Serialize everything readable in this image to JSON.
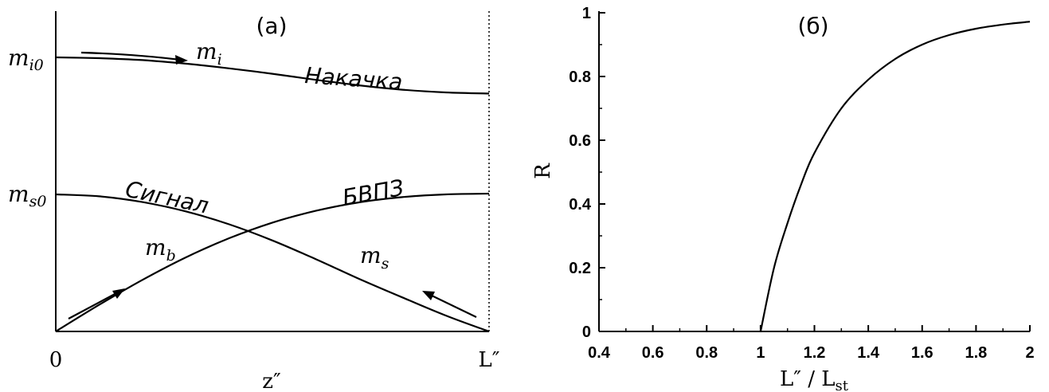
{
  "chart_data": [
    {
      "panel": "a",
      "type": "line",
      "title": "(а)",
      "xlabel": "z″",
      "ylabel": "",
      "x_ticks": [
        "0",
        "L″"
      ],
      "y_ticks": [
        {
          "main": "m",
          "sub": "i0",
          "value": 1.0
        },
        {
          "main": "m",
          "sub": "s0",
          "value": 0.5
        }
      ],
      "xlim": [
        0,
        1
      ],
      "ylim": [
        0,
        1.15
      ],
      "dotted_line_at_x": 1,
      "series": [
        {
          "name": "Накачка",
          "symbol": "m",
          "symbol_sub": "i",
          "direction": "forward",
          "x": [
            0,
            0.1,
            0.2,
            0.3,
            0.4,
            0.5,
            0.6,
            0.7,
            0.8,
            0.9,
            1.0
          ],
          "y": [
            1.0,
            0.997,
            0.99,
            0.977,
            0.96,
            0.94,
            0.918,
            0.898,
            0.882,
            0.872,
            0.868
          ]
        },
        {
          "name": "Сигнал",
          "symbol": "m",
          "symbol_sub": "s",
          "direction": "backward",
          "x": [
            0,
            0.1,
            0.2,
            0.3,
            0.4,
            0.5,
            0.6,
            0.7,
            0.8,
            0.9,
            1.0
          ],
          "y": [
            0.5,
            0.493,
            0.472,
            0.438,
            0.391,
            0.332,
            0.264,
            0.192,
            0.124,
            0.058,
            0.0
          ]
        },
        {
          "name": "БВПЗ",
          "symbol": "m",
          "symbol_sub": "b",
          "direction": "forward",
          "x": [
            0,
            0.1,
            0.2,
            0.3,
            0.4,
            0.5,
            0.6,
            0.7,
            0.8,
            0.9,
            1.0
          ],
          "y": [
            0.0,
            0.097,
            0.188,
            0.27,
            0.34,
            0.397,
            0.44,
            0.471,
            0.49,
            0.5,
            0.503
          ]
        }
      ]
    },
    {
      "panel": "b",
      "type": "line",
      "title": "(б)",
      "xlabel": "L″ / L",
      "xlabel_sub": "st",
      "ylabel": "R",
      "xlim": [
        0.4,
        2.0
      ],
      "ylim": [
        0,
        1.0
      ],
      "x_ticks": [
        "0.4",
        "0.6",
        "0.8",
        "1",
        "1.2",
        "1.4",
        "1.6",
        "1.8",
        "2"
      ],
      "y_ticks": [
        "0",
        "0.2",
        "0.4",
        "0.6",
        "0.8",
        "1"
      ],
      "series": [
        {
          "x": [
            1.0,
            1.05,
            1.1,
            1.15,
            1.2,
            1.3,
            1.4,
            1.5,
            1.6,
            1.7,
            1.8,
            1.9,
            2.0
          ],
          "y": [
            0.0,
            0.2,
            0.34,
            0.46,
            0.56,
            0.7,
            0.79,
            0.855,
            0.9,
            0.93,
            0.95,
            0.963,
            0.972
          ]
        }
      ]
    }
  ]
}
